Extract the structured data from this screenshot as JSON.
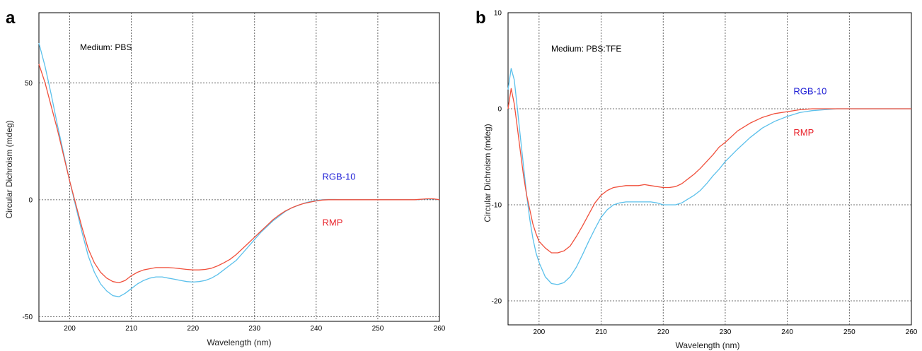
{
  "colors": {
    "rgb10_line": "#5bc0eb",
    "rmp_line": "#f0503c",
    "rgb10_label": "#1f1fd6",
    "rmp_label": "#e8242c",
    "grid": "#444444",
    "frame": "#000000"
  },
  "chart_data": [
    {
      "type": "line",
      "panel_label": "a",
      "annotation": "Medium: PBS",
      "xlabel": "Wavelength (nm)",
      "ylabel": "Circular Dichroism (mdeg)",
      "xlim": [
        195,
        260
      ],
      "ylim": [
        -52,
        80
      ],
      "xticks": [
        200,
        210,
        220,
        230,
        240,
        250,
        260
      ],
      "yticks": [
        50,
        0,
        -50
      ],
      "grid": true,
      "series_labels": [
        {
          "text": "RGB-10",
          "series": 0,
          "x": 241,
          "y": 8.5
        },
        {
          "text": "RMP",
          "series": 1,
          "x": 241,
          "y": -11
        }
      ],
      "series": [
        {
          "name": "RGB-10",
          "x": [
            195,
            196,
            197,
            198,
            199,
            200,
            201,
            202,
            203,
            204,
            205,
            206,
            207,
            208,
            209,
            210,
            211,
            212,
            213,
            214,
            215,
            216,
            217,
            218,
            219,
            220,
            221,
            222,
            223,
            224,
            225,
            226,
            227,
            228,
            229,
            230,
            231,
            232,
            233,
            234,
            235,
            236,
            237,
            238,
            239,
            240,
            241,
            242,
            243,
            244,
            245,
            246,
            247,
            248,
            249,
            250,
            252,
            254,
            256,
            258,
            259,
            260
          ],
          "y": [
            67,
            57,
            45,
            32,
            20,
            8,
            -3,
            -14,
            -24,
            -31,
            -36,
            -39,
            -41,
            -41.5,
            -40,
            -38,
            -36,
            -34.5,
            -33.5,
            -33,
            -33,
            -33.5,
            -34,
            -34.5,
            -35,
            -35.2,
            -35,
            -34.5,
            -33.5,
            -32,
            -30,
            -28,
            -26,
            -23,
            -20,
            -17,
            -14,
            -11.5,
            -9,
            -7,
            -5,
            -3.5,
            -2.5,
            -1.5,
            -0.8,
            -0.3,
            0,
            0.1,
            0.1,
            0,
            0,
            0,
            0,
            0,
            0,
            0,
            0,
            0,
            0,
            0.3,
            0.3,
            0
          ]
        },
        {
          "name": "RMP",
          "x": [
            195,
            196,
            197,
            198,
            199,
            200,
            201,
            202,
            203,
            204,
            205,
            206,
            207,
            208,
            209,
            210,
            211,
            212,
            213,
            214,
            215,
            216,
            217,
            218,
            219,
            220,
            221,
            222,
            223,
            224,
            225,
            226,
            227,
            228,
            229,
            230,
            231,
            232,
            233,
            234,
            235,
            236,
            237,
            238,
            239,
            240,
            241,
            242,
            243,
            244,
            245,
            246,
            247,
            248,
            249,
            250,
            252,
            254,
            256,
            258,
            259,
            260
          ],
          "y": [
            58,
            50,
            40,
            30,
            19,
            8,
            -2,
            -12,
            -21,
            -27,
            -31,
            -33.5,
            -35,
            -35.5,
            -34.5,
            -32.5,
            -31,
            -30,
            -29.5,
            -29,
            -29,
            -29,
            -29.2,
            -29.5,
            -29.8,
            -30,
            -30,
            -29.8,
            -29.3,
            -28.3,
            -27,
            -25.5,
            -23.5,
            -21,
            -18.5,
            -16,
            -13.5,
            -11,
            -8.5,
            -6.5,
            -4.8,
            -3.5,
            -2.4,
            -1.6,
            -1,
            -0.5,
            -0.1,
            0,
            0,
            0,
            0,
            0,
            0,
            0,
            0,
            0,
            0,
            0,
            0,
            0.4,
            0.4,
            0
          ]
        }
      ]
    },
    {
      "type": "line",
      "panel_label": "b",
      "annotation": "Medium: PBS:TFE",
      "xlabel": "Wavelength (nm)",
      "ylabel": "Circular Dichroism (mdeg)",
      "xlim": [
        195,
        260
      ],
      "ylim": [
        -22.5,
        10
      ],
      "xticks": [
        200,
        210,
        220,
        230,
        240,
        250,
        260
      ],
      "yticks": [
        10,
        0,
        -10,
        -20
      ],
      "grid": true,
      "series_labels": [
        {
          "text": "RGB-10",
          "series": 0,
          "x": 241,
          "y": 1.5
        },
        {
          "text": "RMP",
          "series": 1,
          "x": 241,
          "y": -2.8
        }
      ],
      "series": [
        {
          "name": "RGB-10",
          "x": [
            195,
            195.5,
            196,
            196.5,
            197,
            197.5,
            198,
            198.5,
            199,
            199.5,
            200,
            201,
            202,
            203,
            204,
            205,
            206,
            207,
            208,
            209,
            210,
            211,
            212,
            213,
            214,
            215,
            216,
            217,
            218,
            219,
            220,
            221,
            222,
            223,
            224,
            225,
            226,
            227,
            228,
            229,
            230,
            232,
            234,
            236,
            238,
            240,
            242,
            244,
            246,
            248,
            250,
            252,
            254,
            256,
            258,
            260
          ],
          "y": [
            2,
            4.2,
            3,
            0,
            -3,
            -6,
            -9,
            -11.5,
            -13.5,
            -15,
            -16,
            -17.5,
            -18.2,
            -18.3,
            -18.1,
            -17.5,
            -16.5,
            -15.2,
            -13.8,
            -12.5,
            -11.3,
            -10.5,
            -10,
            -9.8,
            -9.7,
            -9.7,
            -9.7,
            -9.7,
            -9.7,
            -9.8,
            -10,
            -10,
            -10,
            -9.8,
            -9.4,
            -9,
            -8.5,
            -7.8,
            -7,
            -6.3,
            -5.5,
            -4.2,
            -3,
            -2,
            -1.3,
            -0.8,
            -0.4,
            -0.2,
            -0.1,
            0,
            0,
            0,
            0,
            0,
            0,
            0
          ]
        },
        {
          "name": "RMP",
          "x": [
            195,
            195.5,
            196,
            196.5,
            197,
            197.5,
            198,
            198.5,
            199,
            199.5,
            200,
            201,
            202,
            203,
            204,
            205,
            206,
            207,
            208,
            209,
            210,
            211,
            212,
            213,
            214,
            215,
            216,
            217,
            218,
            219,
            220,
            221,
            222,
            223,
            224,
            225,
            226,
            227,
            228,
            229,
            230,
            232,
            234,
            236,
            238,
            240,
            242,
            244,
            246,
            248,
            250,
            252,
            254,
            256,
            258,
            260
          ],
          "y": [
            0,
            2.1,
            0.5,
            -2,
            -4.5,
            -7,
            -9,
            -10.5,
            -12,
            -13,
            -13.8,
            -14.5,
            -15,
            -15,
            -14.8,
            -14.3,
            -13.3,
            -12.2,
            -11,
            -9.8,
            -9,
            -8.5,
            -8.2,
            -8.1,
            -8,
            -8,
            -8,
            -7.9,
            -8,
            -8.1,
            -8.2,
            -8.2,
            -8.1,
            -7.8,
            -7.3,
            -6.8,
            -6.2,
            -5.5,
            -4.8,
            -4,
            -3.5,
            -2.3,
            -1.5,
            -0.9,
            -0.5,
            -0.3,
            -0.1,
            0,
            0,
            0,
            0,
            0,
            0,
            0,
            0,
            0
          ]
        }
      ]
    }
  ]
}
